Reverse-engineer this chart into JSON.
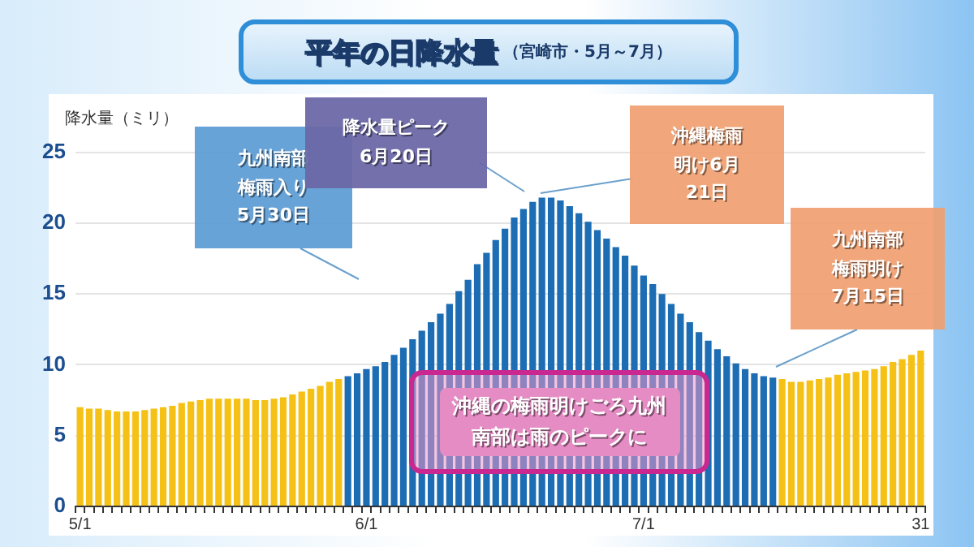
{
  "chart_data": {
    "type": "bar",
    "title": "平年の日降水量",
    "subtitle": "（宮崎市・5月～7月）",
    "ylabel": "降水量（ミリ）",
    "categories": [
      "5/1",
      null,
      null,
      null,
      null,
      null,
      null,
      null,
      null,
      null,
      null,
      null,
      null,
      null,
      null,
      null,
      null,
      null,
      null,
      null,
      null,
      null,
      null,
      null,
      null,
      null,
      null,
      null,
      null,
      null,
      null,
      "6/1",
      null,
      null,
      null,
      null,
      null,
      null,
      null,
      null,
      null,
      null,
      null,
      null,
      null,
      null,
      null,
      null,
      null,
      null,
      null,
      null,
      null,
      null,
      null,
      null,
      null,
      null,
      null,
      null,
      null,
      "7/1",
      null,
      null,
      null,
      null,
      null,
      null,
      null,
      null,
      null,
      null,
      null,
      null,
      null,
      null,
      null,
      null,
      null,
      null,
      null,
      null,
      null,
      null,
      null,
      null,
      null,
      null,
      null,
      null,
      null,
      "31"
    ],
    "values": [
      7.0,
      6.9,
      6.9,
      6.8,
      6.7,
      6.7,
      6.7,
      6.8,
      6.9,
      7.0,
      7.1,
      7.3,
      7.4,
      7.5,
      7.6,
      7.6,
      7.6,
      7.6,
      7.6,
      7.5,
      7.5,
      7.6,
      7.7,
      7.9,
      8.1,
      8.3,
      8.5,
      8.8,
      9.0,
      9.2,
      9.4,
      9.7,
      9.9,
      10.2,
      10.7,
      11.2,
      11.8,
      12.4,
      13.0,
      13.6,
      14.3,
      15.2,
      16.0,
      17.1,
      17.9,
      18.8,
      19.6,
      20.4,
      21.0,
      21.5,
      21.8,
      21.8,
      21.6,
      21.2,
      20.7,
      20.1,
      19.5,
      18.9,
      18.3,
      17.7,
      17.0,
      16.3,
      15.7,
      15.0,
      14.3,
      13.6,
      13.0,
      12.3,
      11.7,
      11.1,
      10.6,
      10.1,
      9.7,
      9.4,
      9.2,
      9.1,
      9.0,
      8.8,
      8.8,
      8.9,
      9.0,
      9.1,
      9.3,
      9.4,
      9.5,
      9.6,
      9.7,
      9.9,
      10.2,
      10.4,
      10.7,
      11.0
    ],
    "colors": [
      "#f5c116",
      "#f5c116",
      "#f5c116",
      "#f5c116",
      "#f5c116",
      "#f5c116",
      "#f5c116",
      "#f5c116",
      "#f5c116",
      "#f5c116",
      "#f5c116",
      "#f5c116",
      "#f5c116",
      "#f5c116",
      "#f5c116",
      "#f5c116",
      "#f5c116",
      "#f5c116",
      "#f5c116",
      "#f5c116",
      "#f5c116",
      "#f5c116",
      "#f5c116",
      "#f5c116",
      "#f5c116",
      "#f5c116",
      "#f5c116",
      "#f5c116",
      "#f5c116",
      "#1c6db3",
      "#1c6db3",
      "#1c6db3",
      "#1c6db3",
      "#1c6db3",
      "#1c6db3",
      "#1c6db3",
      "#1c6db3",
      "#1c6db3",
      "#1c6db3",
      "#1c6db3",
      "#1c6db3",
      "#1c6db3",
      "#1c6db3",
      "#1c6db3",
      "#1c6db3",
      "#1c6db3",
      "#1c6db3",
      "#1c6db3",
      "#1c6db3",
      "#1c6db3",
      "#1c6db3",
      "#1c6db3",
      "#1c6db3",
      "#1c6db3",
      "#1c6db3",
      "#1c6db3",
      "#1c6db3",
      "#1c6db3",
      "#1c6db3",
      "#1c6db3",
      "#1c6db3",
      "#1c6db3",
      "#1c6db3",
      "#1c6db3",
      "#1c6db3",
      "#1c6db3",
      "#1c6db3",
      "#1c6db3",
      "#1c6db3",
      "#1c6db3",
      "#1c6db3",
      "#1c6db3",
      "#1c6db3",
      "#1c6db3",
      "#1c6db3",
      "#1c6db3",
      "#f5c116",
      "#f5c116",
      "#f5c116",
      "#f5c116",
      "#f5c116",
      "#f5c116",
      "#f5c116",
      "#f5c116",
      "#f5c116",
      "#f5c116",
      "#f5c116",
      "#f5c116",
      "#f5c116",
      "#f5c116",
      "#f5c116",
      "#f5c116"
    ],
    "ylim": [
      0,
      25
    ],
    "yticks": [
      0,
      5,
      10,
      15,
      20,
      25
    ],
    "grid": "y",
    "legend": false,
    "annotations": [
      "九州南部梅雨入り5月30日",
      "降水量ピーク6月20日",
      "沖縄梅雨明け6月21日",
      "九州南部梅雨明け7月15日",
      "沖縄の梅雨明けごろ九州南部は雨のピークに"
    ]
  }
}
